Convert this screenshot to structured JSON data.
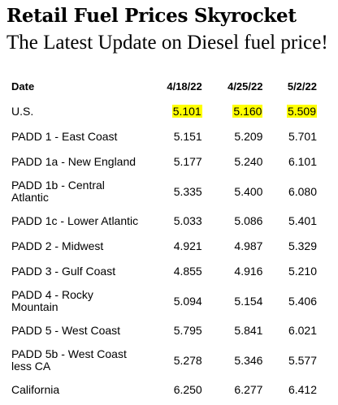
{
  "header": {
    "title": "Retail Fuel Prices Skyrocket",
    "subtitle": "The Latest Update on Diesel fuel price!"
  },
  "table": {
    "columns": [
      "Date",
      "4/18/22",
      "4/25/22",
      "5/2/22"
    ],
    "rows": [
      {
        "region": "U.S.",
        "values": [
          "5.101",
          "5.160",
          "5.509"
        ],
        "highlighted": true
      },
      {
        "region": "PADD 1 - East Coast",
        "values": [
          "5.151",
          "5.209",
          "5.701"
        ]
      },
      {
        "region": "PADD 1a - New England",
        "values": [
          "5.177",
          "5.240",
          "6.101"
        ]
      },
      {
        "region": "PADD 1b - Central Atlantic",
        "values": [
          "5.335",
          "5.400",
          "6.080"
        ]
      },
      {
        "region": "PADD 1c - Lower Atlantic",
        "values": [
          "5.033",
          "5.086",
          "5.401"
        ]
      },
      {
        "region": "PADD 2 - Midwest",
        "values": [
          "4.921",
          "4.987",
          "5.329"
        ]
      },
      {
        "region": "PADD 3 - Gulf Coast",
        "values": [
          "4.855",
          "4.916",
          "5.210"
        ]
      },
      {
        "region": "PADD 4 - Rocky Mountain",
        "values": [
          "5.094",
          "5.154",
          "5.406"
        ]
      },
      {
        "region": "PADD 5 - West Coast",
        "values": [
          "5.795",
          "5.841",
          "6.021"
        ]
      },
      {
        "region": "PADD 5b - West Coast less CA",
        "values": [
          "5.278",
          "5.346",
          "5.577"
        ]
      },
      {
        "region": "California",
        "values": [
          "6.250",
          "6.277",
          "6.412"
        ]
      }
    ]
  },
  "colors": {
    "highlight": "#ffff00",
    "text": "#000000",
    "background": "#ffffff"
  }
}
